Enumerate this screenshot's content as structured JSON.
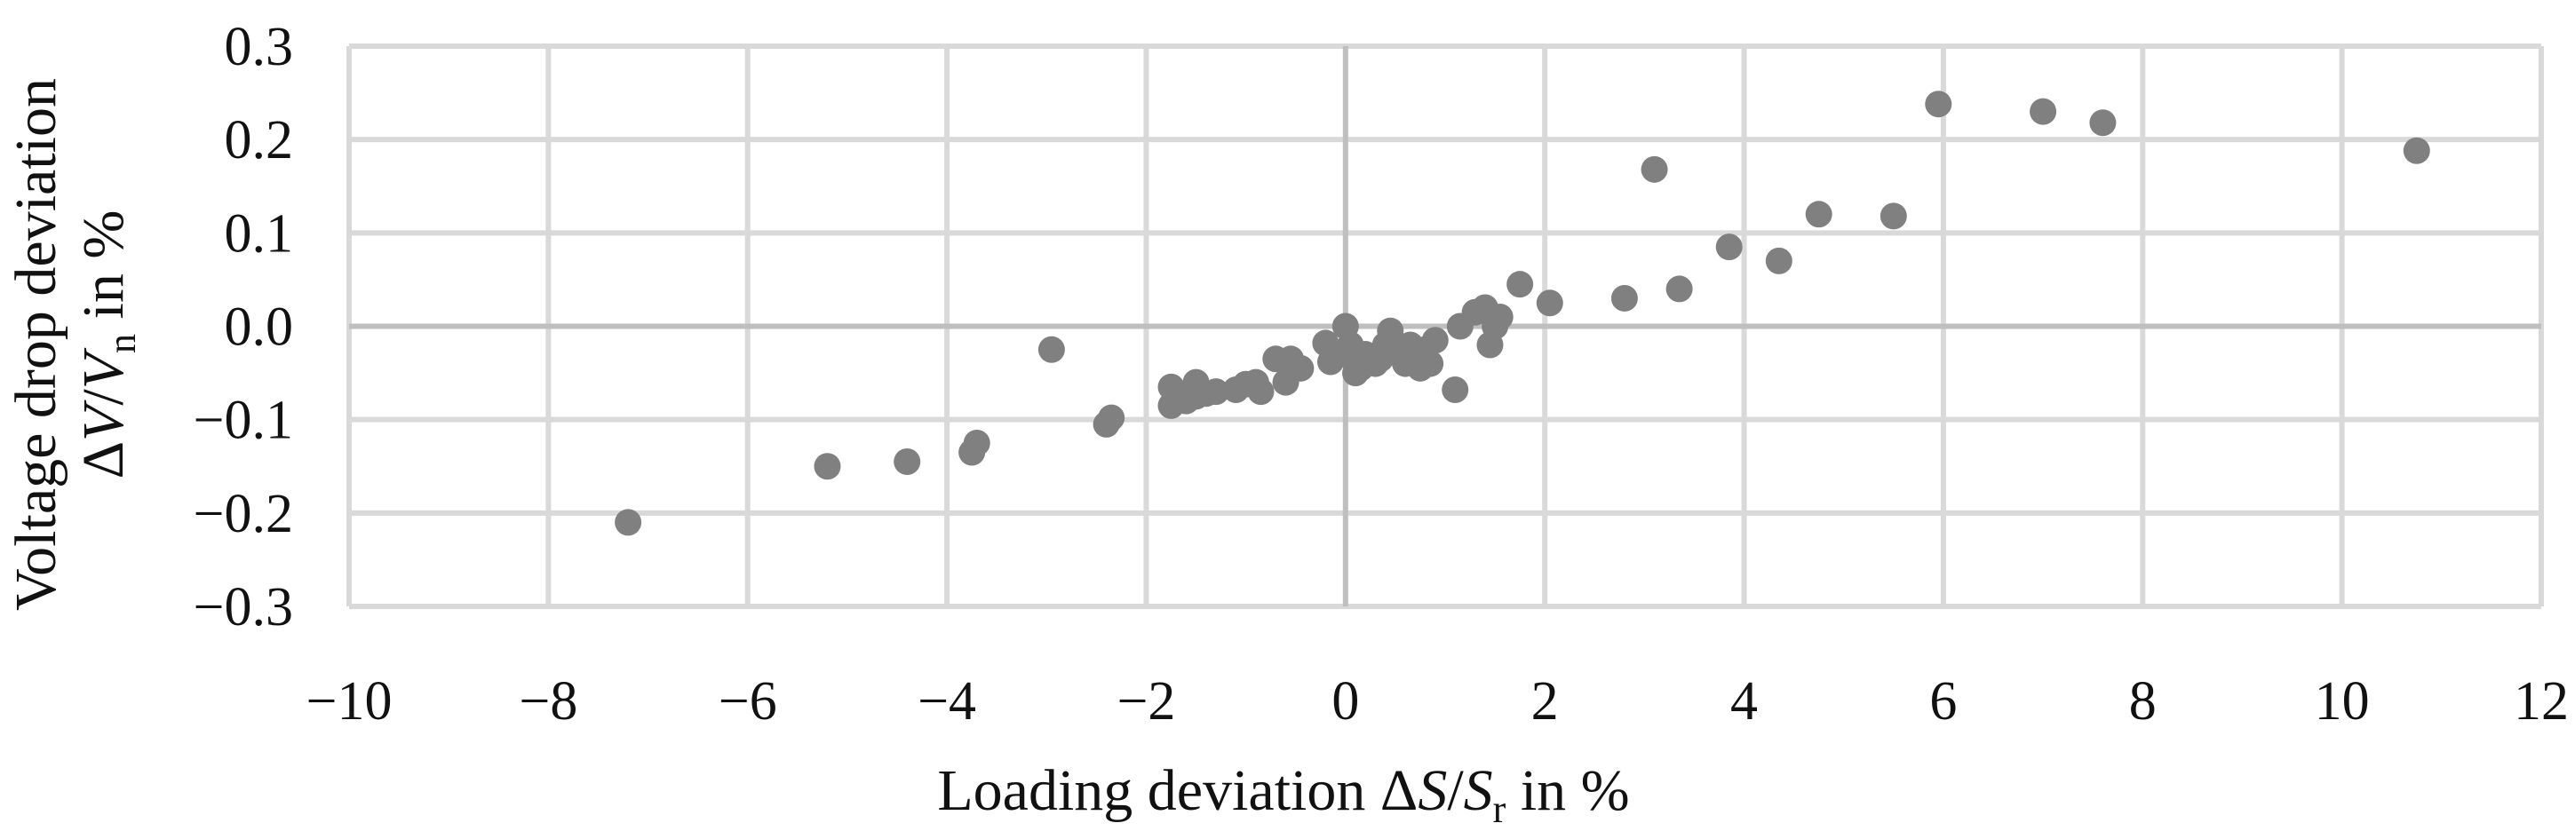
{
  "chart_data": {
    "type": "scatter",
    "xlabel": "Loading deviation ΔS/Sr in %",
    "ylabel": "Voltage drop deviation ΔV/Vn in %",
    "xlim": [
      -10,
      12
    ],
    "ylim": [
      -0.3,
      0.3
    ],
    "x_ticks": [
      "−10",
      "−8",
      "−6",
      "−4",
      "−2",
      "0",
      "2",
      "4",
      "6",
      "8",
      "10",
      "12"
    ],
    "y_ticks": [
      "0.3",
      "0.2",
      "0.1",
      "0.0",
      "−0.1",
      "−0.2",
      "−0.3"
    ],
    "grid": true,
    "marker_color": "#808080",
    "points": [
      [
        -7.2,
        -0.21
      ],
      [
        -5.2,
        -0.15
      ],
      [
        -4.4,
        -0.145
      ],
      [
        -3.75,
        -0.135
      ],
      [
        -3.7,
        -0.125
      ],
      [
        -2.95,
        -0.025
      ],
      [
        -2.4,
        -0.105
      ],
      [
        -2.35,
        -0.098
      ],
      [
        -1.75,
        -0.065
      ],
      [
        -1.75,
        -0.085
      ],
      [
        -1.6,
        -0.08
      ],
      [
        -1.5,
        -0.06
      ],
      [
        -1.5,
        -0.075
      ],
      [
        -1.4,
        -0.072
      ],
      [
        -1.3,
        -0.07
      ],
      [
        -1.1,
        -0.068
      ],
      [
        -1.0,
        -0.062
      ],
      [
        -0.9,
        -0.06
      ],
      [
        -0.85,
        -0.07
      ],
      [
        -0.7,
        -0.035
      ],
      [
        -0.6,
        -0.06
      ],
      [
        -0.55,
        -0.035
      ],
      [
        -0.45,
        -0.045
      ],
      [
        -0.2,
        -0.018
      ],
      [
        -0.15,
        -0.038
      ],
      [
        -0.05,
        -0.03
      ],
      [
        0.0,
        0.0
      ],
      [
        0.05,
        -0.02
      ],
      [
        0.1,
        -0.05
      ],
      [
        0.15,
        -0.045
      ],
      [
        0.2,
        -0.03
      ],
      [
        0.3,
        -0.04
      ],
      [
        0.35,
        -0.035
      ],
      [
        0.4,
        -0.02
      ],
      [
        0.45,
        -0.005
      ],
      [
        0.5,
        -0.025
      ],
      [
        0.55,
        -0.03
      ],
      [
        0.6,
        -0.04
      ],
      [
        0.65,
        -0.02
      ],
      [
        0.7,
        -0.035
      ],
      [
        0.75,
        -0.045
      ],
      [
        0.8,
        -0.025
      ],
      [
        0.85,
        -0.04
      ],
      [
        0.9,
        -0.015
      ],
      [
        1.1,
        -0.068
      ],
      [
        1.15,
        0.0
      ],
      [
        1.3,
        0.015
      ],
      [
        1.4,
        0.02
      ],
      [
        1.45,
        -0.02
      ],
      [
        1.5,
        0.0
      ],
      [
        1.55,
        0.01
      ],
      [
        1.75,
        0.045
      ],
      [
        2.05,
        0.025
      ],
      [
        2.8,
        0.03
      ],
      [
        3.1,
        0.168
      ],
      [
        3.35,
        0.04
      ],
      [
        3.85,
        0.085
      ],
      [
        4.35,
        0.07
      ],
      [
        4.75,
        0.12
      ],
      [
        5.5,
        0.118
      ],
      [
        5.95,
        0.238
      ],
      [
        7.0,
        0.23
      ],
      [
        7.6,
        0.218
      ],
      [
        10.75,
        0.188
      ]
    ]
  }
}
